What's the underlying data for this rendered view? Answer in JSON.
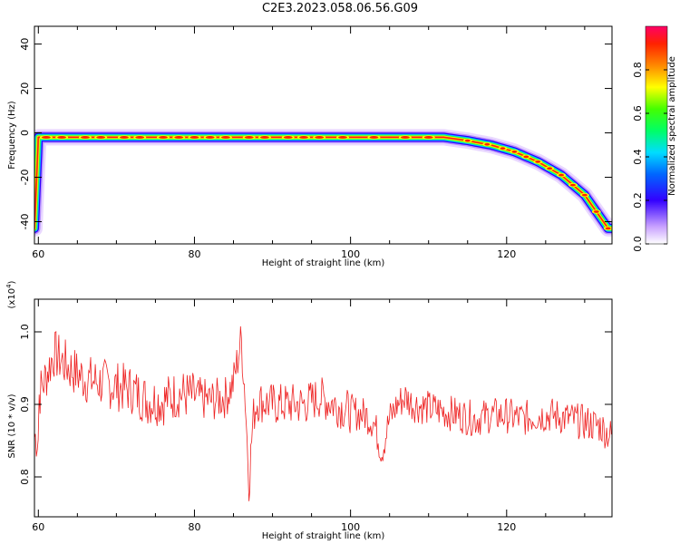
{
  "figure": {
    "title": "C2E3.2023.058.06.56.G09"
  },
  "chart_data": [
    {
      "type": "heatmap",
      "xlabel": "Height of straight line (km)",
      "ylabel": "Frequency (Hz)",
      "xlim": [
        59.5,
        133.5
      ],
      "ylim": [
        -50,
        48
      ],
      "xticks": [
        60,
        80,
        100,
        120
      ],
      "yticks": [
        -40,
        -20,
        0,
        20,
        40
      ],
      "ridge": [
        {
          "x": 60,
          "y": -2
        },
        {
          "x": 80,
          "y": -2
        },
        {
          "x": 100,
          "y": -2
        },
        {
          "x": 112,
          "y": -2
        },
        {
          "x": 115,
          "y": -3.5
        },
        {
          "x": 118,
          "y": -5.5
        },
        {
          "x": 121,
          "y": -8.5
        },
        {
          "x": 124,
          "y": -13
        },
        {
          "x": 127,
          "y": -19
        },
        {
          "x": 130,
          "y": -28
        },
        {
          "x": 133,
          "y": -43
        }
      ],
      "colorbar": {
        "label": "Normalized spectral amplitude",
        "range": [
          0,
          1
        ],
        "ticks": [
          "0.0",
          "0.2",
          "0.4",
          "0.6",
          "0.8"
        ]
      }
    },
    {
      "type": "line",
      "xlabel": "Height of straight line (km)",
      "ylabel": "SNR (10 * v/v)",
      "exponent_label": "(x10",
      "exponent_power": "4",
      "xlim": [
        59.5,
        133.5
      ],
      "ylim": [
        0.745,
        1.045
      ],
      "xticks": [
        60,
        80,
        100,
        120
      ],
      "yticks": [
        0.8,
        0.9,
        1.0
      ],
      "ytick_labels": [
        "0.8",
        "0.9",
        "1.0"
      ],
      "series": [
        {
          "color": "#ee2222",
          "x": [
            60,
            62,
            64,
            66,
            68,
            70,
            72,
            74,
            76,
            78,
            80,
            82,
            84,
            85,
            86,
            86.5,
            87,
            87.5,
            88,
            90,
            92,
            94,
            96,
            98,
            100,
            102,
            103,
            104,
            105,
            106,
            107,
            108,
            110,
            112,
            114,
            116,
            118,
            120,
            122,
            124,
            126,
            128,
            130,
            132,
            133.5
          ],
          "y": [
            0.91,
            0.97,
            0.95,
            0.935,
            0.93,
            0.925,
            0.92,
            0.905,
            0.905,
            0.915,
            0.91,
            0.905,
            0.91,
            0.93,
            0.99,
            0.91,
            0.79,
            0.88,
            0.905,
            0.9,
            0.9,
            0.9,
            0.91,
            0.9,
            0.89,
            0.885,
            0.875,
            0.835,
            0.88,
            0.9,
            0.91,
            0.9,
            0.895,
            0.89,
            0.885,
            0.88,
            0.885,
            0.885,
            0.88,
            0.885,
            0.885,
            0.88,
            0.875,
            0.87,
            0.855
          ]
        }
      ]
    }
  ]
}
